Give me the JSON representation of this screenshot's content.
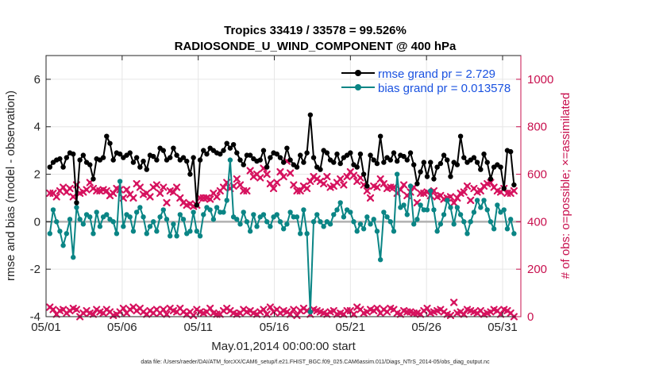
{
  "chart_data": {
    "type": "line",
    "title_line1": "Tropics 33419 / 33578 = 99.526%",
    "title_line2": "RADIOSONDE_U_WIND_COMPONENT @ 400 hPa",
    "xlabel": "May.01,2014 00:00:00 start",
    "ylabel_left": "rmse and bias (model - observation)",
    "ylabel_right": "# of obs: o=possible; ×=assimilated",
    "footer": "data file: /Users/raeder/DAI/ATM_forcXX/CAM6_setup/f.e21.FHIST_BGC.f09_025.CAM6assim.011/Diags_NTrS_2014-05/obs_diag_output.nc",
    "x_ticks": [
      "05/01",
      "05/06",
      "05/11",
      "05/16",
      "05/21",
      "05/26",
      "05/31"
    ],
    "x_tick_days": [
      0,
      5,
      10,
      15,
      20,
      25,
      30
    ],
    "xlim": [
      0,
      31.2
    ],
    "ylim_left": [
      -4,
      7
    ],
    "y_ticks_left": [
      "-4",
      "-2",
      "0",
      "2",
      "4",
      "6"
    ],
    "ylim_right": [
      0,
      1100
    ],
    "y_ticks_right": [
      "0",
      "200",
      "400",
      "600",
      "800",
      "1000"
    ],
    "grid": true,
    "legend_position": "top-right",
    "legend": [
      {
        "name": "rmse grand pr = 2.729",
        "color": "#000000"
      },
      {
        "name": "bias grand pr = 0.013578",
        "color": "#0a8585"
      }
    ],
    "colors": {
      "rmse": "#000000",
      "bias": "#0a8585",
      "obs": "#d6125e",
      "legend_text": "#1a52e0",
      "right_axis": "#c8104e",
      "zero_line": "#b0b0b0"
    },
    "series": [
      {
        "name": "rmse",
        "axis": "left",
        "values": [
          2.3,
          2.5,
          2.6,
          2.65,
          2.3,
          2.7,
          2.9,
          2.85,
          0.8,
          2.6,
          2.8,
          2.5,
          2.4,
          1.8,
          2.65,
          2.6,
          2.7,
          3.6,
          3.3,
          2.6,
          2.9,
          2.85,
          2.7,
          2.8,
          2.9,
          2.5,
          2.7,
          2.3,
          2.55,
          2.2,
          2.8,
          2.75,
          2.6,
          3.1,
          3.0,
          2.6,
          2.7,
          3.1,
          2.8,
          2.6,
          2.7,
          2.55,
          2.0,
          2.7,
          0.7,
          2.6,
          3.0,
          2.85,
          3.1,
          3.0,
          2.9,
          2.85,
          3.0,
          3.3,
          3.1,
          3.25,
          2.9,
          2.6,
          2.4,
          2.8,
          2.8,
          2.65,
          2.55,
          2.6,
          3.0,
          2.3,
          2.7,
          2.9,
          2.85,
          2.7,
          2.5,
          3.1,
          2.6,
          2.4,
          2.3,
          2.8,
          2.5,
          2.9,
          4.5,
          2.7,
          2.3,
          2.2,
          3.0,
          2.9,
          2.6,
          2.5,
          2.85,
          2.45,
          2.7,
          2.8,
          2.9,
          2.4,
          2.3,
          2.85,
          2.0,
          1.5,
          2.8,
          2.6,
          2.45,
          3.6,
          2.5,
          2.7,
          2.6,
          2.9,
          2.55,
          2.8,
          2.75,
          2.6,
          2.9,
          2.4,
          1.6,
          2.1,
          2.5,
          1.9,
          2.5,
          1.8,
          2.3,
          2.45,
          2.8,
          2.6,
          1.9,
          2.5,
          2.4,
          3.6,
          2.7,
          2.5,
          2.6,
          2.7,
          2.5,
          2.2,
          2.85,
          2.5,
          1.8,
          2.3,
          2.4,
          2.3,
          1.4,
          3.0,
          2.95,
          1.55
        ]
      },
      {
        "name": "bias",
        "axis": "left",
        "values": [
          -0.5,
          0.5,
          0.0,
          -0.4,
          -1.0,
          -0.5,
          0.1,
          -1.5,
          0.6,
          0.1,
          -0.1,
          0.3,
          0.2,
          -0.5,
          0.4,
          -0.2,
          0.2,
          0.3,
          0.1,
          0.0,
          -0.5,
          1.7,
          -0.2,
          0.3,
          0.2,
          -0.4,
          0.4,
          0.6,
          0.2,
          -0.5,
          -0.2,
          0.0,
          -0.4,
          0.2,
          0.5,
          0.1,
          -0.6,
          -0.1,
          -0.6,
          0.3,
          0.1,
          -0.5,
          -0.4,
          0.4,
          -0.4,
          -0.6,
          0.3,
          0.6,
          0.5,
          0.1,
          0.6,
          0.4,
          0.4,
          0.9,
          2.6,
          0.2,
          0.1,
          -0.1,
          0.4,
          0.0,
          -0.4,
          0.3,
          -0.2,
          0.2,
          0.3,
          0.0,
          -0.2,
          0.2,
          0.3,
          0.0,
          -0.3,
          -0.1,
          0.4,
          0.2,
          0.2,
          -0.5,
          0.5,
          -0.5,
          -3.8,
          0.0,
          0.3,
          0.0,
          -0.2,
          0.0,
          -0.1,
          0.3,
          0.5,
          0.8,
          0.2,
          0.5,
          0.4,
          0.0,
          -0.4,
          -0.1,
          -0.3,
          0.2,
          -0.1,
          0.1,
          -0.4,
          -1.6,
          0.4,
          0.2,
          0.0,
          -0.4,
          2.0,
          0.6,
          0.7,
          0.3,
          1.5,
          -0.1,
          0.1,
          0.7,
          0.5,
          0.5,
          1.3,
          0.5,
          -0.4,
          -0.1,
          0.3,
          0.9,
          0.6,
          -0.1,
          0.6,
          0.3,
          0.0,
          -0.5,
          0.0,
          0.4,
          0.9,
          0.6,
          0.9,
          0.5,
          0.0,
          -0.3,
          0.7,
          0.4,
          0.5,
          -0.3,
          0.1,
          -0.5
        ]
      },
      {
        "name": "possible",
        "axis": "right",
        "values": [
          520,
          520,
          505,
          530,
          545,
          525,
          540,
          505,
          555,
          520,
          525,
          535,
          565,
          540,
          530,
          530,
          535,
          530,
          510,
          520,
          540,
          535,
          500,
          535,
          515,
          500,
          560,
          545,
          515,
          520,
          505,
          545,
          555,
          520,
          545,
          480,
          530,
          525,
          545,
          500,
          480,
          470,
          475,
          465,
          470,
          500,
          500,
          500,
          495,
          520,
          505,
          530,
          545,
          565,
          540,
          550,
          580,
          555,
          530,
          530,
          615,
          590,
          600,
          585,
          625,
          600,
          560,
          540,
          565,
          610,
          590,
          655,
          605,
          555,
          530,
          530,
          550,
          540,
          570,
          590,
          580,
          570,
          560,
          590,
          545,
          550,
          565,
          580,
          555,
          590,
          610,
          595,
          570,
          585,
          555,
          530,
          500,
          550,
          545,
          580,
          560,
          540,
          545,
          545,
          520,
          535,
          555,
          510,
          525,
          545,
          480,
          520,
          520,
          525,
          510,
          530,
          505,
          510,
          495,
          500,
          505,
          480,
          500,
          520,
          525,
          550,
          490,
          540,
          525,
          530,
          550,
          560,
          565,
          545,
          530,
          525,
          540,
          520,
          520,
          530
        ]
      },
      {
        "name": "assimilated",
        "axis": "right",
        "values": [
          40,
          30,
          10,
          25,
          30,
          15,
          25,
          35,
          30,
          0,
          15,
          25,
          15,
          10,
          30,
          20,
          15,
          30,
          20,
          5,
          10,
          20,
          35,
          15,
          30,
          40,
          25,
          35,
          20,
          10,
          25,
          15,
          30,
          15,
          30,
          10,
          35,
          25,
          20,
          35,
          20,
          10,
          20,
          5,
          30,
          20,
          15,
          20,
          35,
          15,
          10,
          10,
          25,
          35,
          25,
          15,
          10,
          15,
          30,
          20,
          25,
          15,
          10,
          20,
          30,
          10,
          40,
          20,
          30,
          15,
          25,
          20,
          10,
          30,
          5,
          25,
          35,
          25,
          10,
          30,
          25,
          20,
          15,
          10,
          20,
          25,
          10,
          15,
          10,
          25,
          25,
          10,
          40,
          30,
          15,
          20,
          30,
          25,
          35,
          15,
          30,
          20,
          35,
          30,
          15,
          10,
          25,
          20,
          20,
          15,
          15,
          10,
          25,
          35,
          15,
          20,
          25,
          30,
          20,
          10,
          5,
          60,
          15,
          20,
          10,
          30,
          25,
          20,
          15,
          25,
          10,
          15,
          20,
          30,
          25,
          10,
          30,
          25,
          15,
          0
        ]
      }
    ]
  }
}
